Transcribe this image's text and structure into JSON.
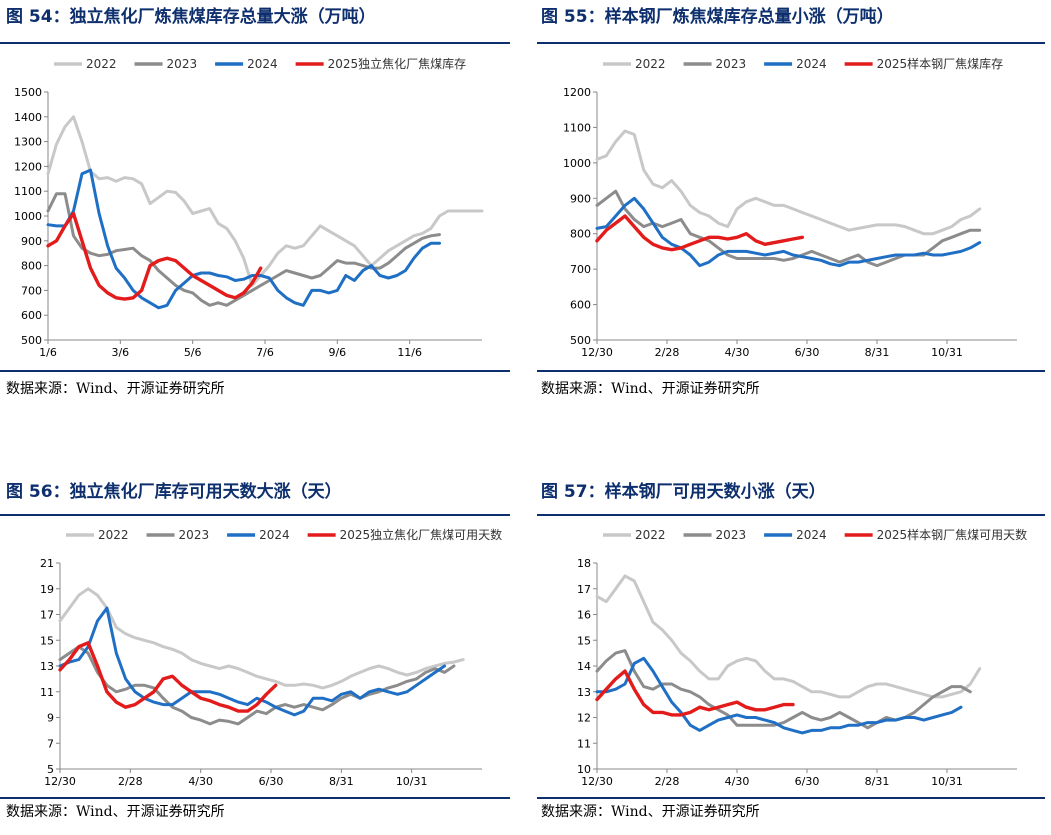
{
  "source": "数据来源：Wind、开源证券研究所",
  "colors": {
    "2022": "#c8c8c8",
    "2023": "#8c8c8c",
    "2024": "#1f6fc5",
    "2025": "#e31b1b"
  },
  "charts": [
    {
      "id": "54",
      "title": "图 54：独立焦化厂炼焦煤库存总量大涨（万吨）"
    },
    {
      "id": "55",
      "title": "图 55：样本钢厂炼焦煤库存总量小涨（万吨）"
    },
    {
      "id": "56",
      "title": "图 56：独立焦化厂库存可用天数大涨（天）"
    },
    {
      "id": "57",
      "title": "图 57：样本钢厂可用天数小涨（天）"
    }
  ],
  "chart_data": [
    {
      "type": "line",
      "title": "图 54：独立焦化厂炼焦煤库存总量大涨（万吨）",
      "ylim": [
        500,
        1500
      ],
      "y_ticks": [
        500,
        600,
        700,
        800,
        900,
        1000,
        1100,
        1200,
        1300,
        1400,
        1500
      ],
      "x_ticks": [
        "1/6",
        "3/6",
        "5/6",
        "7/6",
        "9/6",
        "11/6"
      ],
      "legend_position": "top",
      "series": [
        {
          "name": "2022",
          "color": "#c8c8c8",
          "width": 3,
          "x": [
            0,
            1,
            2,
            3,
            4,
            5,
            6,
            7,
            8,
            9,
            10,
            11,
            12,
            13,
            14,
            15,
            16,
            17,
            18,
            19,
            20,
            21,
            22,
            23,
            24,
            25,
            26,
            27,
            28,
            29,
            30,
            31,
            32,
            33,
            34,
            35,
            36,
            37,
            38,
            39,
            40,
            41,
            42,
            43,
            44,
            45,
            46,
            47,
            48,
            49,
            50,
            51
          ],
          "values": [
            1170,
            1290,
            1360,
            1400,
            1300,
            1180,
            1150,
            1155,
            1140,
            1155,
            1150,
            1130,
            1050,
            1075,
            1100,
            1095,
            1060,
            1010,
            1020,
            1030,
            970,
            950,
            900,
            830,
            720,
            760,
            800,
            850,
            880,
            870,
            880,
            920,
            960,
            940,
            920,
            900,
            880,
            840,
            800,
            830,
            860,
            880,
            900,
            920,
            930,
            950,
            1000,
            1020,
            1020,
            1020,
            1020,
            1020
          ],
          "n": 47
        },
        {
          "name": "2023",
          "color": "#8c8c8c",
          "width": 3,
          "values": [
            1020,
            1090,
            1090,
            920,
            870,
            850,
            840,
            845,
            860,
            865,
            870,
            840,
            820,
            780,
            750,
            720,
            700,
            690,
            660,
            640,
            650,
            640,
            660,
            680,
            700,
            720,
            740,
            760,
            780,
            770,
            760,
            750,
            760,
            790,
            820,
            810,
            810,
            800,
            790,
            790,
            810,
            840,
            870,
            890,
            910,
            920,
            925
          ]
        },
        {
          "name": "2024",
          "color": "#1f6fc5",
          "width": 3,
          "values": [
            965,
            960,
            960,
            1020,
            1170,
            1185,
            1010,
            880,
            790,
            750,
            700,
            670,
            650,
            630,
            640,
            700,
            730,
            760,
            770,
            770,
            760,
            755,
            740,
            745,
            760,
            760,
            750,
            700,
            670,
            650,
            640,
            700,
            700,
            690,
            700,
            760,
            740,
            780,
            800,
            760,
            750,
            760,
            780,
            830,
            870,
            890,
            890
          ]
        },
        {
          "name": "2025独立焦化厂焦煤库存",
          "color": "#e31b1b",
          "width": 3.4,
          "values": [
            880,
            900,
            960,
            1010,
            900,
            790,
            720,
            690,
            670,
            665,
            670,
            700,
            800,
            820,
            830,
            820,
            790,
            760,
            740,
            720,
            700,
            680,
            670,
            690,
            730,
            790
          ]
        }
      ]
    },
    {
      "type": "line",
      "title": "图 55：样本钢厂炼焦煤库存总量小涨（万吨）",
      "ylim": [
        500,
        1200
      ],
      "y_ticks": [
        500,
        600,
        700,
        800,
        900,
        1000,
        1100,
        1200
      ],
      "x_ticks": [
        "12/30",
        "2/28",
        "4/30",
        "6/30",
        "8/31",
        "10/31"
      ],
      "legend_position": "top",
      "series": [
        {
          "name": "2022",
          "color": "#c8c8c8",
          "width": 3,
          "values": [
            1010,
            1020,
            1060,
            1090,
            1080,
            980,
            940,
            930,
            950,
            920,
            880,
            860,
            850,
            830,
            820,
            870,
            890,
            900,
            890,
            880,
            880,
            870,
            860,
            850,
            840,
            830,
            820,
            810,
            815,
            820,
            825,
            825,
            825,
            820,
            810,
            800,
            800,
            810,
            820,
            840,
            850,
            870
          ]
        },
        {
          "name": "2023",
          "color": "#8c8c8c",
          "width": 3,
          "values": [
            880,
            900,
            920,
            870,
            840,
            820,
            830,
            820,
            830,
            840,
            800,
            790,
            780,
            760,
            740,
            730,
            730,
            730,
            730,
            730,
            725,
            730,
            740,
            750,
            740,
            730,
            720,
            730,
            740,
            720,
            710,
            720,
            730,
            740,
            740,
            740,
            760,
            780,
            790,
            800,
            810,
            810
          ]
        },
        {
          "name": "2024",
          "color": "#1f6fc5",
          "width": 3,
          "values": [
            815,
            820,
            850,
            880,
            900,
            870,
            830,
            790,
            770,
            760,
            740,
            710,
            720,
            740,
            750,
            750,
            750,
            745,
            740,
            745,
            750,
            740,
            735,
            730,
            725,
            715,
            710,
            720,
            720,
            725,
            730,
            735,
            740,
            740,
            740,
            745,
            740,
            740,
            745,
            750,
            760,
            775
          ]
        },
        {
          "name": "2025样本钢厂焦煤库存",
          "color": "#e31b1b",
          "width": 3.4,
          "values": [
            780,
            810,
            830,
            850,
            820,
            790,
            770,
            760,
            755,
            760,
            770,
            780,
            790,
            790,
            785,
            790,
            800,
            780,
            770,
            775,
            780,
            785,
            790
          ]
        }
      ]
    },
    {
      "type": "line",
      "title": "图 56：独立焦化厂库存可用天数大涨（天）",
      "ylim": [
        5,
        21
      ],
      "y_ticks": [
        5,
        7,
        9,
        11,
        13,
        15,
        17,
        19,
        21
      ],
      "x_ticks": [
        "12/30",
        "2/28",
        "4/30",
        "6/30",
        "8/31",
        "10/31"
      ],
      "legend_position": "top",
      "series": [
        {
          "name": "2022",
          "color": "#c8c8c8",
          "width": 3,
          "values": [
            16.5,
            17.5,
            18.5,
            19.0,
            18.5,
            17.5,
            16.0,
            15.5,
            15.2,
            15.0,
            14.8,
            14.5,
            14.3,
            14.0,
            13.5,
            13.2,
            13.0,
            12.8,
            13.0,
            12.8,
            12.5,
            12.2,
            12.0,
            11.8,
            11.5,
            11.5,
            11.6,
            11.5,
            11.3,
            11.5,
            11.8,
            12.2,
            12.5,
            12.8,
            13.0,
            12.8,
            12.5,
            12.3,
            12.5,
            12.8,
            13.0,
            13.2,
            13.3,
            13.5
          ]
        },
        {
          "name": "2023",
          "color": "#8c8c8c",
          "width": 3,
          "values": [
            13.5,
            14.0,
            14.5,
            14.0,
            12.5,
            11.5,
            11.0,
            11.2,
            11.5,
            11.5,
            11.3,
            10.5,
            9.8,
            9.5,
            9.0,
            8.8,
            8.5,
            8.8,
            8.7,
            8.5,
            9.0,
            9.5,
            9.3,
            9.8,
            10.0,
            9.8,
            10.0,
            9.8,
            9.6,
            10.0,
            10.5,
            10.8,
            10.5,
            10.8,
            11.0,
            11.3,
            11.5,
            11.8,
            12.0,
            12.5,
            12.8,
            12.5,
            13.0
          ]
        },
        {
          "name": "2024",
          "color": "#1f6fc5",
          "width": 3,
          "values": [
            13.0,
            13.3,
            13.5,
            14.5,
            16.5,
            17.5,
            14.0,
            12.0,
            11.0,
            10.5,
            10.2,
            10.0,
            10.0,
            10.5,
            11.0,
            11.0,
            11.0,
            10.8,
            10.5,
            10.2,
            10.0,
            10.5,
            10.2,
            9.8,
            9.5,
            9.2,
            9.5,
            10.5,
            10.5,
            10.3,
            10.8,
            11.0,
            10.5,
            11.0,
            11.2,
            11.0,
            10.8,
            11.0,
            11.5,
            12.0,
            12.5,
            13.0
          ]
        },
        {
          "name": "2025独立焦化厂焦煤可用天数",
          "color": "#e31b1b",
          "width": 3.4,
          "values": [
            12.7,
            13.5,
            14.5,
            14.8,
            13.0,
            11.0,
            10.2,
            9.8,
            10.0,
            10.5,
            11.0,
            12.0,
            12.2,
            11.5,
            11.0,
            10.5,
            10.3,
            10.0,
            9.8,
            9.5,
            9.5,
            10.0,
            10.8,
            11.5
          ]
        }
      ]
    },
    {
      "type": "line",
      "title": "图 57：样本钢厂可用天数小涨（天）",
      "ylim": [
        10,
        18
      ],
      "y_ticks": [
        10,
        11,
        12,
        13,
        14,
        15,
        16,
        17,
        18
      ],
      "x_ticks": [
        "12/30",
        "2/28",
        "4/30",
        "6/30",
        "8/31",
        "10/31"
      ],
      "legend_position": "top",
      "series": [
        {
          "name": "2022",
          "color": "#c8c8c8",
          "width": 3,
          "values": [
            16.7,
            16.5,
            17.0,
            17.5,
            17.3,
            16.5,
            15.7,
            15.4,
            15.0,
            14.5,
            14.2,
            13.8,
            13.5,
            13.5,
            14.0,
            14.2,
            14.3,
            14.2,
            13.8,
            13.5,
            13.5,
            13.4,
            13.2,
            13.0,
            13.0,
            12.9,
            12.8,
            12.8,
            13.0,
            13.2,
            13.3,
            13.3,
            13.2,
            13.1,
            13.0,
            12.9,
            12.8,
            12.8,
            12.9,
            13.0,
            13.3,
            13.9
          ]
        },
        {
          "name": "2023",
          "color": "#8c8c8c",
          "width": 3,
          "values": [
            13.8,
            14.2,
            14.5,
            14.6,
            13.8,
            13.2,
            13.1,
            13.3,
            13.3,
            13.1,
            13.0,
            12.8,
            12.5,
            12.3,
            12.1,
            11.7,
            11.7,
            11.7,
            11.7,
            11.7,
            11.8,
            12.0,
            12.2,
            12.0,
            11.9,
            12.0,
            12.2,
            12.0,
            11.8,
            11.6,
            11.8,
            12.0,
            11.9,
            12.0,
            12.2,
            12.5,
            12.8,
            13.0,
            13.2,
            13.2,
            13.0
          ]
        },
        {
          "name": "2024",
          "color": "#1f6fc5",
          "width": 3,
          "values": [
            13.0,
            13.0,
            13.1,
            13.3,
            14.1,
            14.3,
            13.8,
            13.2,
            12.6,
            12.2,
            11.7,
            11.5,
            11.7,
            11.9,
            12.0,
            12.1,
            12.0,
            12.0,
            11.9,
            11.8,
            11.6,
            11.5,
            11.4,
            11.5,
            11.5,
            11.6,
            11.6,
            11.7,
            11.7,
            11.8,
            11.8,
            11.9,
            11.9,
            12.0,
            12.0,
            11.9,
            12.0,
            12.1,
            12.2,
            12.4
          ]
        },
        {
          "name": "2025样本钢厂焦煤可用天数",
          "color": "#e31b1b",
          "width": 3.4,
          "values": [
            12.7,
            13.1,
            13.5,
            13.8,
            13.1,
            12.5,
            12.2,
            12.2,
            12.1,
            12.1,
            12.2,
            12.4,
            12.3,
            12.4,
            12.5,
            12.6,
            12.4,
            12.3,
            12.3,
            12.4,
            12.5,
            12.5
          ]
        }
      ]
    }
  ]
}
